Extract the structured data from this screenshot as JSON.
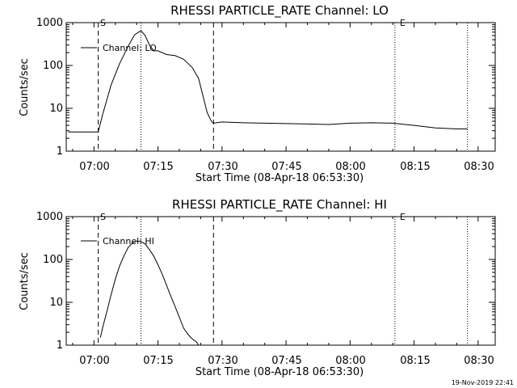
{
  "chart_data": [
    {
      "type": "line",
      "title": "RHESSI PARTICLE_RATE Channel: LO",
      "xlabel": "Start Time (08-Apr-18 06:53:30)",
      "ylabel": "Counts/sec",
      "x_ticks": [
        "07:00",
        "07:15",
        "07:30",
        "07:45",
        "08:00",
        "08:15",
        "08:30"
      ],
      "y_ticks": [
        "1",
        "10",
        "100",
        "1000"
      ],
      "y_scale": "log",
      "xlim": [
        "06:53:30",
        "08:34:00"
      ],
      "ylim": [
        1,
        1000
      ],
      "legend": {
        "entries": [
          "Channel: LO"
        ],
        "placement": "top-left"
      },
      "marker_labels": {
        "start": "S",
        "end": "E"
      },
      "markers": [
        {
          "time": "07:01:00",
          "style": "dashed",
          "label": "S"
        },
        {
          "time": "07:11:00",
          "style": "dotted"
        },
        {
          "time": "07:28:00",
          "style": "dashed"
        },
        {
          "time": "08:10:30",
          "style": "dotted",
          "label": "E"
        },
        {
          "time": "08:27:30",
          "style": "dotted"
        }
      ],
      "series": [
        {
          "name": "Channel: LO",
          "x": [
            "06:54:00",
            "06:57:00",
            "07:00:00",
            "07:01:00",
            "07:02:00",
            "07:04:00",
            "07:06:00",
            "07:08:00",
            "07:09:30",
            "07:11:00",
            "07:12:00",
            "07:13:00",
            "07:14:00",
            "07:15:00",
            "07:17:00",
            "07:19:00",
            "07:21:00",
            "07:23:00",
            "07:24:30",
            "07:25:30",
            "07:26:30",
            "07:27:30",
            "07:28:00",
            "07:30:00",
            "07:35:00",
            "07:40:00",
            "07:45:00",
            "07:50:00",
            "07:55:00",
            "08:00:00",
            "08:05:00",
            "08:10:00",
            "08:15:00",
            "08:20:00",
            "08:25:00",
            "08:27:30"
          ],
          "y": [
            2.8,
            2.8,
            2.8,
            2.8,
            7,
            35,
            110,
            280,
            520,
            650,
            500,
            300,
            220,
            220,
            180,
            170,
            140,
            90,
            50,
            20,
            8,
            5,
            4.5,
            4.8,
            4.6,
            4.5,
            4.4,
            4.3,
            4.2,
            4.5,
            4.6,
            4.5,
            4.0,
            3.5,
            3.3,
            3.3
          ]
        }
      ]
    },
    {
      "type": "line",
      "title": "RHESSI PARTICLE_RATE Channel: HI",
      "xlabel": "Start Time (08-Apr-18 06:53:30)",
      "ylabel": "Counts/sec",
      "x_ticks": [
        "07:00",
        "07:15",
        "07:30",
        "07:45",
        "08:00",
        "08:15",
        "08:30"
      ],
      "y_ticks": [
        "1",
        "10",
        "100",
        "1000"
      ],
      "y_scale": "log",
      "xlim": [
        "06:53:30",
        "08:34:00"
      ],
      "ylim": [
        1,
        1000
      ],
      "legend": {
        "entries": [
          "Channel: HI"
        ],
        "placement": "top-left"
      },
      "marker_labels": {
        "start": "S",
        "end": "E"
      },
      "markers": [
        {
          "time": "07:01:00",
          "style": "dashed",
          "label": "S"
        },
        {
          "time": "07:11:00",
          "style": "dotted"
        },
        {
          "time": "07:28:00",
          "style": "dashed"
        },
        {
          "time": "08:10:30",
          "style": "dotted",
          "label": "E"
        },
        {
          "time": "08:27:30",
          "style": "dotted"
        }
      ],
      "series": [
        {
          "name": "Channel: HI",
          "x": [
            "07:01:30",
            "07:02:00",
            "07:03:00",
            "07:04:00",
            "07:05:00",
            "07:06:00",
            "07:07:00",
            "07:08:00",
            "07:09:00",
            "07:10:00",
            "07:11:00",
            "07:12:00",
            "07:13:00",
            "07:14:00",
            "07:15:00",
            "07:16:00",
            "07:17:00",
            "07:18:00",
            "07:19:00",
            "07:20:00",
            "07:21:00",
            "07:22:00",
            "07:23:00",
            "07:24:00",
            "07:24:30"
          ],
          "y": [
            1.5,
            2.5,
            6,
            15,
            35,
            70,
            120,
            190,
            240,
            270,
            260,
            230,
            170,
            120,
            75,
            45,
            25,
            14,
            8,
            4.5,
            2.5,
            1.8,
            1.4,
            1.2,
            1.0
          ]
        }
      ]
    }
  ],
  "footer": {
    "timestamp": "19-Nov-2019 22:41"
  }
}
